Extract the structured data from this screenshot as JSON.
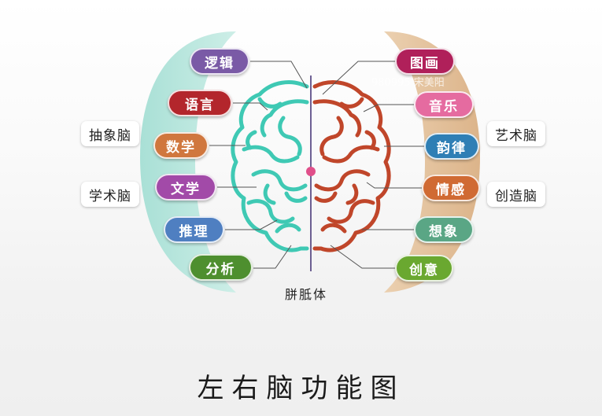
{
  "title": "左右脑功能图",
  "corpus_label": "胼胝体",
  "watermark": "980995 宋美阳",
  "left_categories": [
    "抽象脑",
    "学术脑"
  ],
  "right_categories": [
    "艺术脑",
    "创造脑"
  ],
  "left_functions": [
    {
      "label": "逻辑",
      "color": "#7a5aa6"
    },
    {
      "label": "语言",
      "color": "#b3262c"
    },
    {
      "label": "数学",
      "color": "#d0773e"
    },
    {
      "label": "文学",
      "color": "#a24aa8"
    },
    {
      "label": "推理",
      "color": "#4f7fc1"
    },
    {
      "label": "分析",
      "color": "#4e8f2f"
    }
  ],
  "right_functions": [
    {
      "label": "图画",
      "color": "#b0205a"
    },
    {
      "label": "音乐",
      "color": "#e56ba0"
    },
    {
      "label": "韵律",
      "color": "#2f7fb5"
    },
    {
      "label": "情感",
      "color": "#d06a33"
    },
    {
      "label": "想象",
      "color": "#5aa685"
    },
    {
      "label": "创意",
      "color": "#6aa830"
    }
  ],
  "colors": {
    "left_band": "#bfe8df",
    "right_band": "#e3c29c",
    "left_brain_stroke": "#3fc9b4",
    "right_brain_stroke": "#c0462a",
    "corpus": "#e04f8a"
  }
}
